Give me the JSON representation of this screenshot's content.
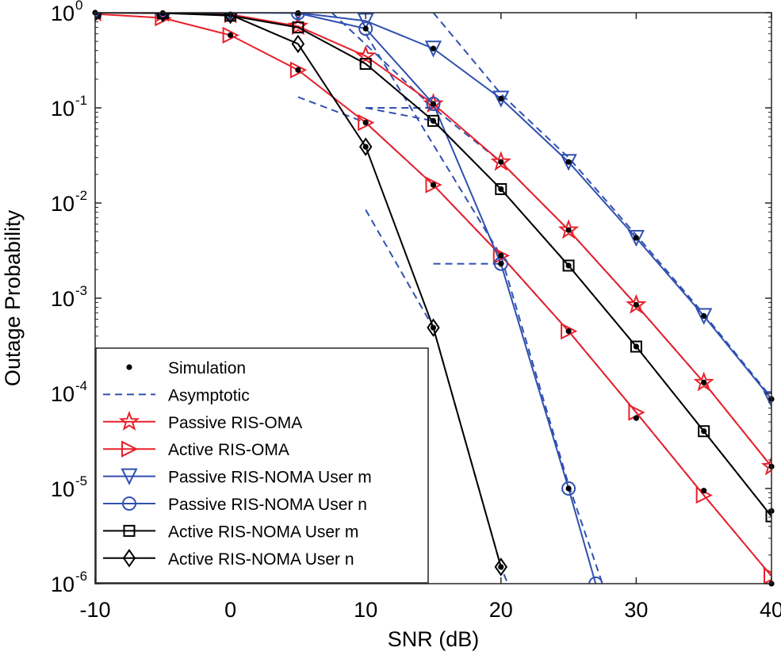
{
  "chart_data": {
    "type": "line",
    "xlabel": "SNR (dB)",
    "ylabel": "Outage Probability",
    "xlim": [
      -10,
      40
    ],
    "ylim": [
      1e-06,
      1
    ],
    "yscale": "log",
    "grid": false,
    "legend_position": "bottom-left",
    "x_ticks": [
      {
        "value": -10,
        "label": "-10"
      },
      {
        "value": 0,
        "label": "0"
      },
      {
        "value": 10,
        "label": "10"
      },
      {
        "value": 20,
        "label": "20"
      },
      {
        "value": 30,
        "label": "30"
      },
      {
        "value": 40,
        "label": "40"
      }
    ],
    "y_ticks": [
      {
        "value": 1,
        "base": "10",
        "exp": "0"
      },
      {
        "value": 0.1,
        "base": "10",
        "exp": "-1"
      },
      {
        "value": 0.01,
        "base": "10",
        "exp": "-2"
      },
      {
        "value": 0.001,
        "base": "10",
        "exp": "-3"
      },
      {
        "value": 0.0001,
        "base": "10",
        "exp": "-4"
      },
      {
        "value": 1e-05,
        "base": "10",
        "exp": "-5"
      },
      {
        "value": 1e-06,
        "base": "10",
        "exp": "-6"
      }
    ],
    "legend": [
      {
        "label": "Simulation",
        "color": "#000000",
        "marker": "dot",
        "line": "none"
      },
      {
        "label": "Asymptotic",
        "color": "#3050b0",
        "marker": "none",
        "line": "dashed"
      },
      {
        "label": "Passive RIS-OMA",
        "color": "#e8202a",
        "marker": "star",
        "line": "solid"
      },
      {
        "label": "Active RIS-OMA",
        "color": "#e8202a",
        "marker": "triangle-right",
        "line": "solid"
      },
      {
        "label": "Passive RIS-NOMA User m",
        "color": "#3050b0",
        "marker": "triangle-down",
        "line": "solid"
      },
      {
        "label": "Passive RIS-NOMA User n",
        "color": "#3050b0",
        "marker": "circle",
        "line": "solid"
      },
      {
        "label": "Active RIS-NOMA User m",
        "color": "#000000",
        "marker": "square",
        "line": "solid"
      },
      {
        "label": "Active RIS-NOMA User n",
        "color": "#000000",
        "marker": "diamond",
        "line": "solid"
      }
    ],
    "series": [
      {
        "name": "Passive RIS-OMA",
        "color": "#e8202a",
        "marker": "star",
        "x": [
          -10,
          -5,
          0,
          5,
          10,
          15,
          20,
          25,
          30,
          35,
          40
        ],
        "y": [
          1,
          0.99,
          0.96,
          0.72,
          0.35,
          0.11,
          0.027,
          0.0052,
          0.00085,
          0.00013,
          1.7e-05
        ]
      },
      {
        "name": "Active RIS-OMA",
        "color": "#e8202a",
        "marker": "triangle-right",
        "x": [
          -10,
          -5,
          0,
          5,
          10,
          15,
          20,
          25,
          30,
          35,
          40
        ],
        "y": [
          0.97,
          0.88,
          0.58,
          0.25,
          0.07,
          0.0155,
          0.0028,
          0.00045,
          6.3e-05,
          8.5e-06,
          1.2e-06
        ]
      },
      {
        "name": "Passive RIS-NOMA User m",
        "color": "#3050b0",
        "marker": "triangle-down",
        "x": [
          -10,
          -5,
          0,
          5,
          10,
          15,
          20,
          25,
          30,
          35,
          40
        ],
        "y": [
          1,
          1,
          1,
          1,
          0.82,
          0.42,
          0.125,
          0.027,
          0.0043,
          0.00065,
          8.7e-05
        ]
      },
      {
        "name": "Passive RIS-NOMA User n",
        "color": "#3050b0",
        "marker": "circle",
        "x": [
          -10,
          -5,
          0,
          5,
          10,
          15,
          20,
          25,
          27
        ],
        "y": [
          1,
          1,
          1,
          0.99,
          0.68,
          0.11,
          0.0023,
          1e-05,
          1e-06
        ]
      },
      {
        "name": "Active RIS-NOMA User m",
        "color": "#000000",
        "marker": "square",
        "x": [
          -10,
          -5,
          0,
          5,
          10,
          15,
          20,
          25,
          30,
          35,
          40
        ],
        "y": [
          1,
          0.99,
          0.93,
          0.7,
          0.29,
          0.073,
          0.014,
          0.0022,
          0.00031,
          4e-05,
          5.1e-06
        ]
      },
      {
        "name": "Active RIS-NOMA User n",
        "color": "#000000",
        "marker": "diamond",
        "x": [
          -10,
          -5,
          0,
          5,
          10,
          15,
          20
        ],
        "y": [
          1,
          0.99,
          0.95,
          0.47,
          0.039,
          0.00049,
          1.5e-06
        ]
      }
    ],
    "simulation": {
      "x": [
        -10,
        -5,
        0,
        5,
        10,
        10,
        15,
        15,
        15,
        20,
        20,
        20,
        20,
        25,
        25,
        25,
        25,
        30,
        30,
        30,
        30,
        35,
        35,
        35,
        35,
        40,
        40,
        40,
        40,
        5,
        0,
        15,
        20,
        10,
        25,
        20,
        15
      ],
      "y": [
        1,
        0.99,
        0.58,
        0.25,
        0.07,
        0.68,
        0.11,
        0.42,
        0.073,
        0.0023,
        0.014,
        0.125,
        0.027,
        1e-05,
        0.0022,
        0.027,
        0.0052,
        5.5e-05,
        0.00031,
        0.0043,
        0.00085,
        9.5e-06,
        4e-05,
        0.00065,
        0.00013,
        1e-06,
        5.8e-06,
        8.7e-05,
        1.7e-05,
        0.99,
        0.96,
        0.0155,
        1.5e-06,
        0.039,
        0.00045,
        0.0028,
        0.00049
      ]
    },
    "asymptotic": [
      {
        "x": [
          7.5,
          15,
          20,
          25,
          30,
          35,
          40
        ],
        "y": [
          1,
          0.1,
          0.027,
          0.0052,
          0.00085,
          0.00013,
          1.7e-05
        ]
      },
      {
        "x": [
          5,
          10,
          15,
          20,
          25,
          30,
          35,
          40
        ],
        "y": [
          0.13,
          0.07,
          0.0155,
          0.0028,
          0.00045,
          6.3e-05,
          8.5e-06,
          1.2e-06
        ]
      },
      {
        "x": [
          15,
          20,
          25,
          30,
          35,
          40
        ],
        "y": [
          1,
          0.14,
          0.03,
          0.0046,
          0.00068,
          9e-05
        ]
      },
      {
        "x": [
          10,
          15
        ],
        "y": [
          0.1,
          0.1
        ]
      },
      {
        "x": [
          15,
          20
        ],
        "y": [
          0.0023,
          0.0023
        ]
      },
      {
        "x": [
          10,
          20,
          25,
          27.5
        ],
        "y": [
          0.6,
          0.0028,
          1.1e-05,
          1e-06
        ]
      },
      {
        "x": [
          10,
          15,
          20,
          25,
          30,
          35,
          40
        ],
        "y": [
          0.1,
          0.073,
          0.014,
          0.0022,
          0.00031,
          4e-05,
          5.1e-06
        ]
      },
      {
        "x": [
          10,
          15,
          20,
          20.5
        ],
        "y": [
          0.0085,
          0.00049,
          1.5e-06,
          1e-06
        ]
      }
    ]
  }
}
